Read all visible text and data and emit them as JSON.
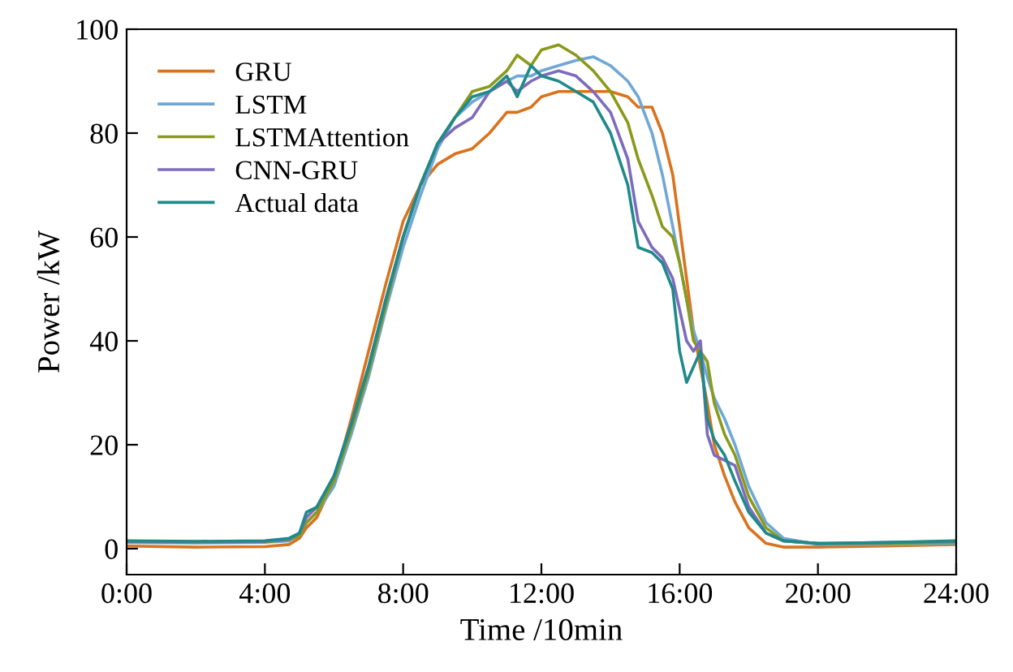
{
  "chart_data": {
    "type": "line",
    "xlabel": "Time /10min",
    "ylabel": "Power /kW",
    "x": [
      0,
      2,
      4,
      4.7,
      5,
      5.2,
      5.5,
      6,
      6.5,
      7,
      7.5,
      8,
      8.5,
      9,
      9.5,
      10,
      10.5,
      11,
      11.3,
      11.7,
      12,
      12.5,
      13,
      13.5,
      14,
      14.5,
      14.8,
      15.2,
      15.5,
      15.8,
      16,
      16.2,
      16.4,
      16.6,
      16.8,
      17,
      17.3,
      17.6,
      18,
      18.5,
      19,
      20,
      22,
      24
    ],
    "series": [
      {
        "name": "GRU",
        "color": "#d9731e",
        "values": [
          0.5,
          0.3,
          0.4,
          0.8,
          2,
          4,
          6,
          13,
          25,
          38,
          51,
          63,
          70,
          74,
          76,
          77,
          80,
          84,
          84,
          85,
          87,
          88,
          88,
          88,
          88,
          87,
          85,
          85,
          80,
          72,
          62,
          52,
          42,
          35,
          28,
          20,
          14,
          9,
          4,
          1,
          0.3,
          0.3,
          0.5,
          0.8
        ]
      },
      {
        "name": "LSTM",
        "color": "#6fa8d6",
        "values": [
          1.2,
          1.1,
          1.2,
          1.5,
          2.5,
          5,
          7,
          12,
          22,
          33,
          46,
          58,
          68,
          77,
          83,
          86,
          88,
          90,
          91,
          91,
          92,
          93,
          94,
          94.7,
          93,
          90,
          87,
          80,
          72,
          62,
          55,
          48,
          42,
          38,
          33,
          29,
          25,
          20,
          12,
          5,
          2,
          0.8,
          0.8,
          1
        ]
      },
      {
        "name": "LSTMAttention",
        "color": "#8a9a1a",
        "values": [
          1.3,
          1.2,
          1.3,
          1.7,
          2.5,
          5,
          7,
          13,
          23,
          34,
          47,
          60,
          70,
          78,
          83,
          88,
          89,
          92,
          95,
          93,
          96,
          97,
          95,
          92,
          88,
          82,
          75,
          68,
          62,
          60,
          55,
          48,
          40,
          38,
          36,
          28,
          22,
          18,
          10,
          4,
          1.5,
          1,
          1,
          1.2
        ]
      },
      {
        "name": "CNN-GRU",
        "color": "#7d6bbd",
        "values": [
          1.4,
          1.3,
          1.4,
          1.8,
          3,
          6,
          8,
          14,
          24,
          35,
          48,
          60,
          70,
          78,
          81,
          83,
          88,
          90,
          88,
          90,
          91,
          92,
          91,
          88,
          84,
          75,
          63,
          58,
          56,
          52,
          46,
          40,
          38,
          40,
          22,
          18,
          17,
          16,
          8,
          3,
          1.5,
          1,
          1.2,
          1.4
        ]
      },
      {
        "name": "Actual data",
        "color": "#1f8a8a",
        "values": [
          1.5,
          1.4,
          1.5,
          2,
          3,
          7,
          8,
          14,
          24,
          35,
          48,
          60,
          70,
          78,
          83,
          87,
          88,
          91,
          87,
          93,
          91,
          90,
          88,
          86,
          80,
          70,
          58,
          57,
          55,
          50,
          38,
          32,
          35,
          38,
          25,
          21,
          18,
          13,
          7,
          3,
          1.5,
          1,
          1.2,
          1.5
        ]
      }
    ],
    "xlim": [
      0,
      24
    ],
    "xticks": [
      {
        "value": 0,
        "label": "0:00"
      },
      {
        "value": 4,
        "label": "4:00"
      },
      {
        "value": 8,
        "label": "8:00"
      },
      {
        "value": 12,
        "label": "12:00"
      },
      {
        "value": 16,
        "label": "16:00"
      },
      {
        "value": 20,
        "label": "20:00"
      },
      {
        "value": 24,
        "label": "24:00"
      }
    ],
    "ylim": [
      -5,
      100
    ],
    "yticks": [
      0,
      20,
      40,
      60,
      80,
      100
    ],
    "legend": "top left",
    "grid": false,
    "marker": "none",
    "line_style": "solid"
  }
}
